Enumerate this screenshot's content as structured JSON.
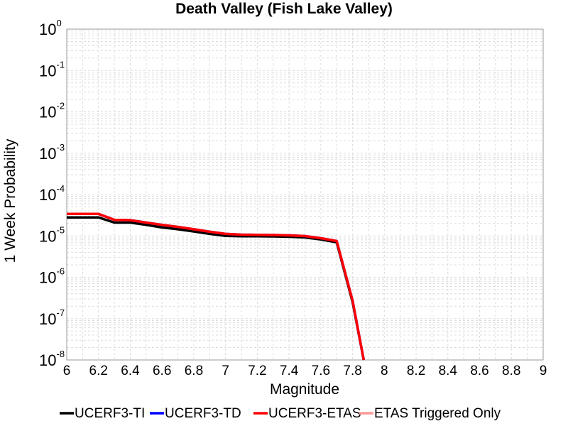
{
  "chart_data": {
    "type": "line",
    "title": "Death Valley (Fish Lake Valley)",
    "xlabel": "Magnitude",
    "ylabel": "1 Week Probability",
    "xlim": [
      6,
      9
    ],
    "ylim": [
      1e-08,
      1
    ],
    "yscale": "log",
    "grid": true,
    "legend_position": "bottom",
    "x_ticks": [
      "6",
      "6.2",
      "6.4",
      "6.6",
      "6.8",
      "7",
      "7.2",
      "7.4",
      "7.6",
      "7.8",
      "8",
      "8.2",
      "8.4",
      "8.6",
      "8.8",
      "9"
    ],
    "y_ticks": [
      {
        "base": "10",
        "exp": "0"
      },
      {
        "base": "10",
        "exp": "-1"
      },
      {
        "base": "10",
        "exp": "-2"
      },
      {
        "base": "10",
        "exp": "-3"
      },
      {
        "base": "10",
        "exp": "-4"
      },
      {
        "base": "10",
        "exp": "-5"
      },
      {
        "base": "10",
        "exp": "-6"
      },
      {
        "base": "10",
        "exp": "-7"
      },
      {
        "base": "10",
        "exp": "-8"
      }
    ],
    "series": [
      {
        "name": "UCERF3-TI",
        "color": "#000000",
        "x": [
          6.0,
          6.2,
          6.3,
          6.4,
          6.5,
          6.6,
          6.7,
          6.8,
          6.9,
          7.0,
          7.1,
          7.2,
          7.3,
          7.4,
          7.5,
          7.6,
          7.7,
          7.8,
          7.87
        ],
        "y": [
          2.8e-05,
          2.8e-05,
          2.1e-05,
          2.1e-05,
          1.85e-05,
          1.6e-05,
          1.45e-05,
          1.28e-05,
          1.12e-05,
          1e-05,
          9.8e-06,
          9.8e-06,
          9.7e-06,
          9.5e-06,
          9.2e-06,
          8.2e-06,
          7e-06,
          2.5e-07,
          1e-08
        ]
      },
      {
        "name": "UCERF3-TD",
        "color": "#0000ff",
        "x": [
          6.0,
          6.2,
          6.3,
          6.4,
          6.5,
          6.6,
          6.7,
          6.8,
          6.9,
          7.0,
          7.1,
          7.2,
          7.3,
          7.4,
          7.5,
          7.6,
          7.7,
          7.8,
          7.87
        ],
        "y": [
          3.4e-05,
          3.4e-05,
          2.45e-05,
          2.4e-05,
          2.1e-05,
          1.85e-05,
          1.65e-05,
          1.45e-05,
          1.26e-05,
          1.12e-05,
          1.07e-05,
          1.06e-05,
          1.05e-05,
          1.03e-05,
          9.9e-06,
          8.8e-06,
          7.5e-06,
          2.7e-07,
          1e-08
        ]
      },
      {
        "name": "UCERF3-ETAS",
        "color": "#ff0000",
        "x": [
          6.0,
          6.2,
          6.3,
          6.4,
          6.5,
          6.6,
          6.7,
          6.8,
          6.9,
          7.0,
          7.1,
          7.2,
          7.3,
          7.4,
          7.5,
          7.6,
          7.7,
          7.8,
          7.87
        ],
        "y": [
          3.4e-05,
          3.4e-05,
          2.45e-05,
          2.4e-05,
          2.1e-05,
          1.85e-05,
          1.65e-05,
          1.45e-05,
          1.26e-05,
          1.12e-05,
          1.07e-05,
          1.06e-05,
          1.05e-05,
          1.03e-05,
          9.9e-06,
          8.8e-06,
          7.5e-06,
          2.7e-07,
          1e-08
        ]
      },
      {
        "name": "ETAS Triggered Only",
        "color": "#ff9999",
        "x": [],
        "y": []
      }
    ]
  }
}
